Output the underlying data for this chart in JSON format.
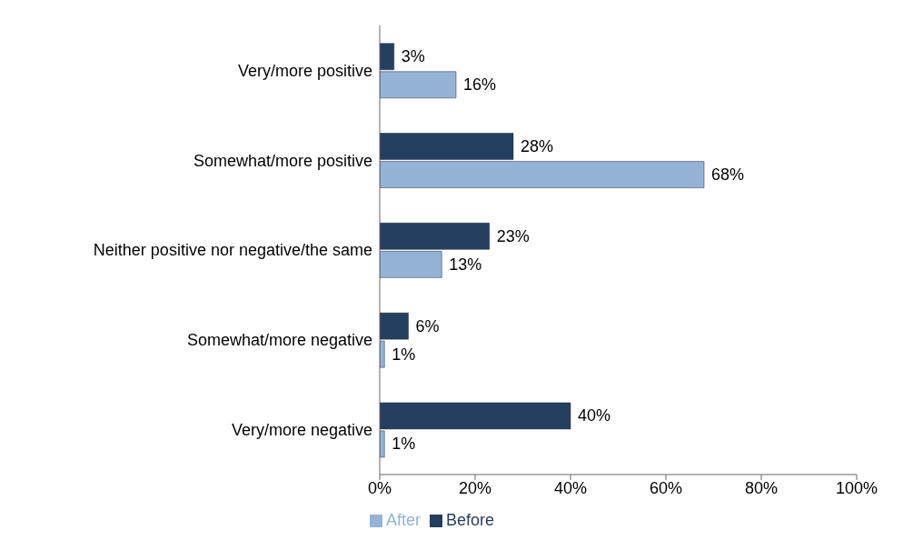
{
  "chart_data": {
    "type": "bar",
    "orientation": "horizontal",
    "categories": [
      "Very/more positive",
      "Somewhat/more positive",
      "Neither positive nor negative/the same",
      "Somewhat/more negative",
      "Very/more negative"
    ],
    "series": [
      {
        "name": "Before",
        "color": "#243f60",
        "values": [
          3,
          28,
          23,
          6,
          40
        ],
        "value_labels": [
          "3%",
          "28%",
          "23%",
          "6%",
          "40%"
        ]
      },
      {
        "name": "After",
        "color": "#95b3d7",
        "values": [
          16,
          68,
          13,
          1,
          1
        ],
        "value_labels": [
          "16%",
          "68%",
          "13%",
          "1%",
          "1%"
        ]
      }
    ],
    "xlim": [
      0,
      100
    ],
    "xticks": [
      {
        "value": 0,
        "label": "0%"
      },
      {
        "value": 20,
        "label": "20%"
      },
      {
        "value": 40,
        "label": "40%"
      },
      {
        "value": 60,
        "label": "60%"
      },
      {
        "value": 80,
        "label": "80%"
      },
      {
        "value": 100,
        "label": "100%"
      }
    ],
    "grid": false,
    "legend": "bottom"
  }
}
